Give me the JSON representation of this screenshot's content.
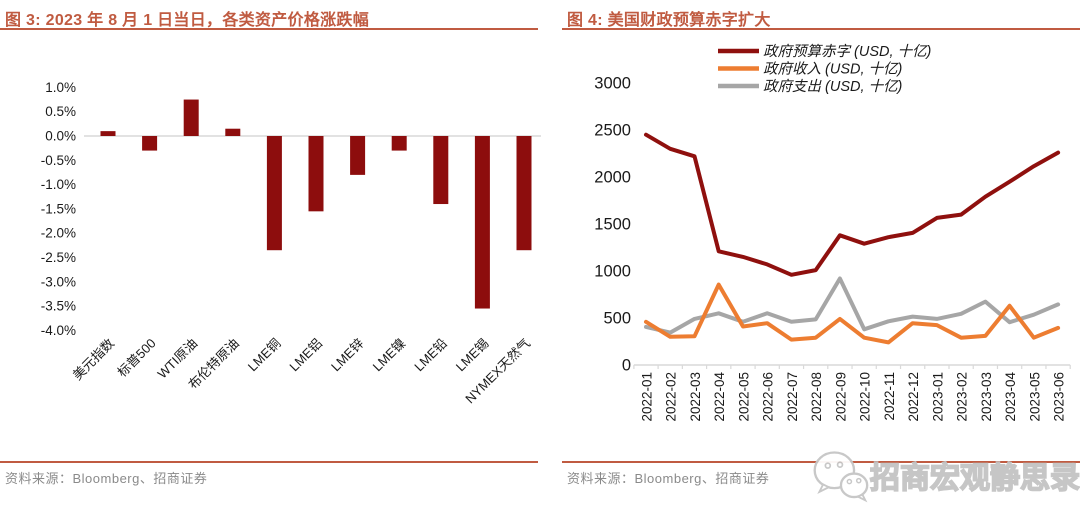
{
  "colors": {
    "accent": "#c05b41",
    "bar": "#8d0d0d",
    "deficit": "#8f100e",
    "revenue": "#ed7d31",
    "spending": "#a6a6a6",
    "axis_line": "#d9d9d9",
    "tick_text": "#1a1a1a",
    "source_text": "#8a8a8a",
    "watermark": "#c3c3c3"
  },
  "chart_data": [
    {
      "id": "fig3",
      "type": "bar",
      "title": "图 3: 2023 年 8 月 1 日当日，各类资产价格涨跌幅",
      "categories": [
        "美元指数",
        "标普500",
        "WTI原油",
        "布伦特原油",
        "LME铜",
        "LME铝",
        "LME锌",
        "LME镍",
        "LME铅",
        "LME锡",
        "NYMEX天然气"
      ],
      "values": [
        0.1,
        -0.3,
        0.75,
        0.15,
        -2.35,
        -1.55,
        -0.8,
        -0.3,
        -1.4,
        -3.55,
        -2.35
      ],
      "unit": "%",
      "ylim": [
        -4.0,
        1.0
      ],
      "yticks": [
        1.0,
        0.5,
        0.0,
        -0.5,
        -1.0,
        -1.5,
        -2.0,
        -2.5,
        -3.0,
        -3.5,
        -4.0
      ],
      "grid": false,
      "legend_position": "none",
      "source": "资料来源：Bloomberg、招商证券"
    },
    {
      "id": "fig4",
      "type": "line",
      "title": "图 4: 美国财政预算赤字扩大",
      "categories": [
        "2022-01",
        "2022-02",
        "2022-03",
        "2022-04",
        "2022-05",
        "2022-06",
        "2022-07",
        "2022-08",
        "2022-09",
        "2022-10",
        "2022-11",
        "2022-12",
        "2023-01",
        "2023-02",
        "2023-03",
        "2023-04",
        "2023-05",
        "2023-06"
      ],
      "series": [
        {
          "name": "政府预算赤字 (USD, 十亿)",
          "color_key": "deficit",
          "values": [
            2450,
            2300,
            2220,
            1210,
            1150,
            1070,
            960,
            1010,
            1380,
            1290,
            1360,
            1405,
            1565,
            1600,
            1790,
            1950,
            2115,
            2260
          ]
        },
        {
          "name": "政府收入 (USD, 十亿)",
          "color_key": "revenue",
          "values": [
            460,
            300,
            305,
            855,
            410,
            445,
            270,
            290,
            490,
            290,
            240,
            445,
            425,
            290,
            310,
            630,
            290,
            395
          ]
        },
        {
          "name": "政府支出 (USD, 十亿)",
          "color_key": "spending",
          "values": [
            405,
            345,
            490,
            550,
            460,
            550,
            460,
            485,
            920,
            380,
            465,
            515,
            490,
            545,
            675,
            455,
            535,
            645
          ]
        }
      ],
      "ylim": [
        0,
        3000
      ],
      "yticks": [
        0,
        500,
        1000,
        1500,
        2000,
        2500,
        3000
      ],
      "grid": false,
      "legend_position": "top",
      "source": "资料来源：Bloomberg、招商证券"
    }
  ],
  "watermark": {
    "icon": "wechat-icon",
    "text": "招商宏观静思录"
  }
}
